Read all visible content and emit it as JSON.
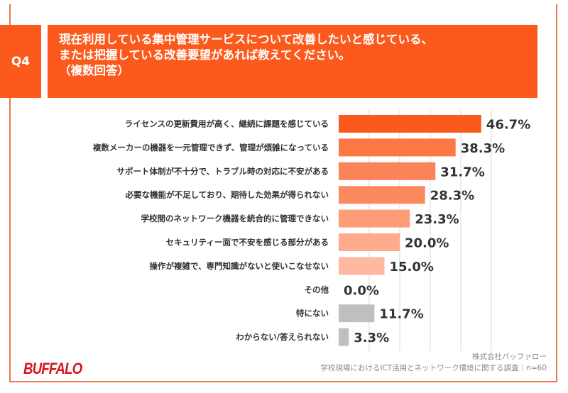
{
  "header": {
    "question_label": "Q4",
    "title_lines": [
      "現在利用している集中管理サービスについて改善したいと感じている、",
      "または把握している改善要望があれば教えてください。",
      "（複数回答）"
    ]
  },
  "chart_data": {
    "type": "bar",
    "orientation": "horizontal",
    "xlim": [
      0,
      50
    ],
    "grid": true,
    "value_suffix": "%",
    "categories": [
      "ライセンスの更新費用が高く、継続に課題を感じている",
      "複数メーカーの機器を一元管理できず、管理が煩雑になっている",
      "サポート体制が不十分で、トラブル時の対応に不安がある",
      "必要な機能が不足しており、期待した効果が得られない",
      "学校間のネットワーク機器を統合的に管理できない",
      "セキュリティー面で不安を感じる部分がある",
      "操作が複雑で、専門知識がないと使いこなせない",
      "その他",
      "特にない",
      "わからない/答えられない"
    ],
    "values": [
      46.7,
      38.3,
      31.7,
      28.3,
      23.3,
      20.0,
      15.0,
      0.0,
      11.7,
      3.3
    ],
    "labels": [
      "46.7%",
      "38.3%",
      "31.7%",
      "28.3%",
      "23.3%",
      "20.0%",
      "15.0%",
      "0.0%",
      "11.7%",
      "3.3%"
    ],
    "colors": [
      "#fc5a1d",
      "#fb7844",
      "#fc8258",
      "#fc8a5f",
      "#fd9c77",
      "#fdab8c",
      "#feb9a0",
      "#fec6b0",
      "#bfbfbf",
      "#bfbfbf"
    ]
  },
  "footer": {
    "logo": "BUFFALO",
    "company": "株式会社バッファロー",
    "survey": "学校現場におけるICT活用とネットワーク環境に関する調査｜n=60"
  }
}
